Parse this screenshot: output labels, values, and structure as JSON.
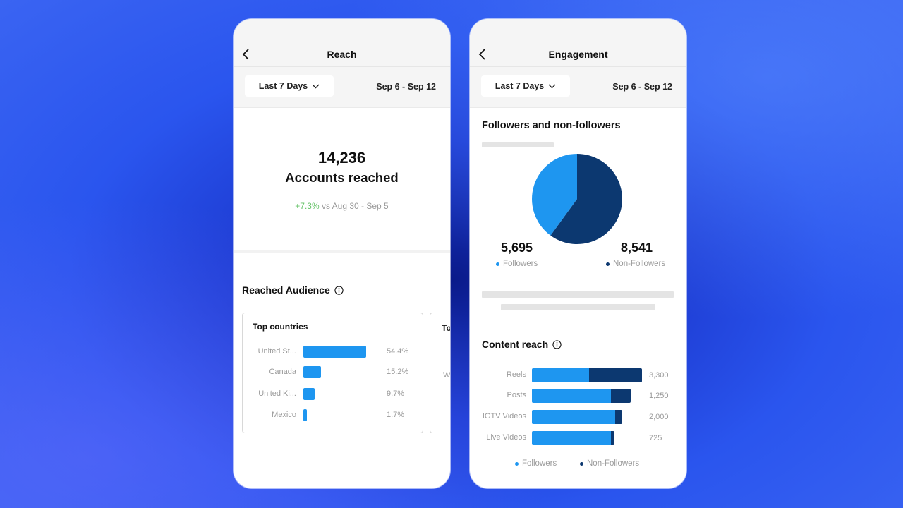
{
  "colors": {
    "followers": "#1e96f0",
    "non_followers": "#0c3870",
    "positive": "#67c36a"
  },
  "reach_screen": {
    "title": "Reach",
    "range_label": "Last 7 Days",
    "dates": "Sep 6 - Sep 12",
    "accounts_reached": "14,236",
    "accounts_label": "Accounts reached",
    "change_pct": "+7.3%",
    "change_text": " vs Aug 30 - Sep 5",
    "audience_title": "Reached Audience",
    "top_countries": {
      "title": "Top countries",
      "rows": [
        {
          "label": "United St...",
          "value": "54.4%",
          "fraction": 0.544
        },
        {
          "label": "Canada",
          "value": "15.2%",
          "fraction": 0.152
        },
        {
          "label": "United Ki...",
          "value": "9.7%",
          "fraction": 0.097
        },
        {
          "label": "Mexico",
          "value": "1.7%",
          "fraction": 0.017
        }
      ]
    },
    "next_card_title": "To",
    "next_card_letter": "W"
  },
  "engagement_screen": {
    "title": "Engagement",
    "range_label": "Last 7 Days",
    "dates": "Sep 6 - Sep 12",
    "pie_title": "Followers and non-followers",
    "followers_count": "5,695",
    "followers_label": "Followers",
    "non_followers_count": "8,541",
    "non_followers_label": "Non-Followers",
    "content_reach_title": "Content reach",
    "content_rows": [
      {
        "label": "Reels",
        "value": "3,300",
        "followers_fraction": 0.52
      },
      {
        "label": "Posts",
        "value": "1,250",
        "followers_fraction": 0.8
      },
      {
        "label": "IGTV Videos",
        "value": "2,000",
        "followers_fraction": 0.92
      },
      {
        "label": "Live Videos",
        "value": "725",
        "followers_fraction": 0.96
      }
    ],
    "legend_followers": "Followers",
    "legend_non_followers": "Non-Followers"
  }
}
